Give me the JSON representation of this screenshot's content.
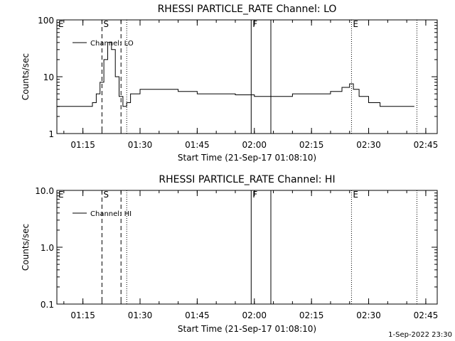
{
  "footer": {
    "timestamp": "1-Sep-2022 23:30"
  },
  "chart_data": [
    {
      "type": "line",
      "title": "RHESSI PARTICLE_RATE Channel: LO",
      "xlabel": "Start Time (21-Sep-17 01:08:10)",
      "ylabel": "Counts/sec",
      "yscale": "log",
      "ylim": [
        1,
        100
      ],
      "xlim": [
        "01:08:10",
        "02:48:00"
      ],
      "x_ticks": [
        "01:15",
        "01:30",
        "01:45",
        "02:00",
        "02:15",
        "02:30",
        "02:45"
      ],
      "y_ticks": [
        "1",
        "10",
        "100"
      ],
      "legend": {
        "position": "top-left",
        "entries": [
          "Channel: LO"
        ]
      },
      "grid": false,
      "markers": [
        {
          "label": "E",
          "time": "01:08:10",
          "style": "none"
        },
        {
          "label": "S",
          "time": "01:20:00",
          "style": "dashed"
        },
        {
          "label": "",
          "time": "01:25:00",
          "style": "dashed"
        },
        {
          "label": "",
          "time": "01:26:30",
          "style": "dotted"
        },
        {
          "label": "F",
          "time": "01:59:10",
          "style": "solid"
        },
        {
          "label": "",
          "time": "02:04:20",
          "style": "solid"
        },
        {
          "label": "E",
          "time": "02:25:30",
          "style": "dotted"
        },
        {
          "label": "",
          "time": "02:42:40",
          "style": "dotted"
        }
      ],
      "series": [
        {
          "name": "Channel: LO",
          "points": [
            [
              "01:08:10",
              3
            ],
            [
              "01:10:00",
              3
            ],
            [
              "01:12:00",
              3
            ],
            [
              "01:14:00",
              3
            ],
            [
              "01:16:00",
              3
            ],
            [
              "01:17:30",
              3.5
            ],
            [
              "01:18:30",
              5
            ],
            [
              "01:19:30",
              8
            ],
            [
              "01:20:30",
              20
            ],
            [
              "01:21:30",
              40
            ],
            [
              "01:22:30",
              30
            ],
            [
              "01:23:30",
              10
            ],
            [
              "01:24:30",
              4.5
            ],
            [
              "01:25:30",
              3
            ],
            [
              "01:26:30",
              3.5
            ],
            [
              "01:27:30",
              5
            ],
            [
              "01:30:00",
              6
            ],
            [
              "01:35:00",
              6
            ],
            [
              "01:40:00",
              5.5
            ],
            [
              "01:45:00",
              5
            ],
            [
              "01:50:00",
              5
            ],
            [
              "01:55:00",
              4.8
            ],
            [
              "02:00:00",
              4.5
            ],
            [
              "02:05:00",
              4.5
            ],
            [
              "02:10:00",
              5
            ],
            [
              "02:15:00",
              5
            ],
            [
              "02:20:00",
              5.5
            ],
            [
              "02:23:00",
              6.5
            ],
            [
              "02:25:00",
              7.5
            ],
            [
              "02:26:00",
              6
            ],
            [
              "02:27:30",
              4.5
            ],
            [
              "02:30:00",
              3.5
            ],
            [
              "02:33:00",
              3
            ],
            [
              "02:36:00",
              3
            ],
            [
              "02:39:00",
              3
            ],
            [
              "02:42:00",
              3
            ]
          ]
        }
      ]
    },
    {
      "type": "line",
      "title": "RHESSI PARTICLE_RATE Channel: HI",
      "xlabel": "Start Time (21-Sep-17 01:08:10)",
      "ylabel": "Counts/sec",
      "yscale": "log",
      "ylim": [
        0.1,
        10
      ],
      "xlim": [
        "01:08:10",
        "02:48:00"
      ],
      "x_ticks": [
        "01:15",
        "01:30",
        "01:45",
        "02:00",
        "02:15",
        "02:30",
        "02:45"
      ],
      "y_ticks": [
        "0.1",
        "1.0",
        "10.0"
      ],
      "legend": {
        "position": "top-left",
        "entries": [
          "Channel: HI"
        ]
      },
      "grid": false,
      "markers": [
        {
          "label": "E",
          "time": "01:08:10",
          "style": "none"
        },
        {
          "label": "S",
          "time": "01:20:00",
          "style": "dashed"
        },
        {
          "label": "",
          "time": "01:25:00",
          "style": "dashed"
        },
        {
          "label": "",
          "time": "01:26:30",
          "style": "dotted"
        },
        {
          "label": "F",
          "time": "01:59:10",
          "style": "solid"
        },
        {
          "label": "",
          "time": "02:04:20",
          "style": "solid"
        },
        {
          "label": "E",
          "time": "02:25:30",
          "style": "dotted"
        },
        {
          "label": "",
          "time": "02:42:40",
          "style": "dotted"
        }
      ],
      "series": [
        {
          "name": "Channel: HI",
          "points": []
        }
      ]
    }
  ]
}
